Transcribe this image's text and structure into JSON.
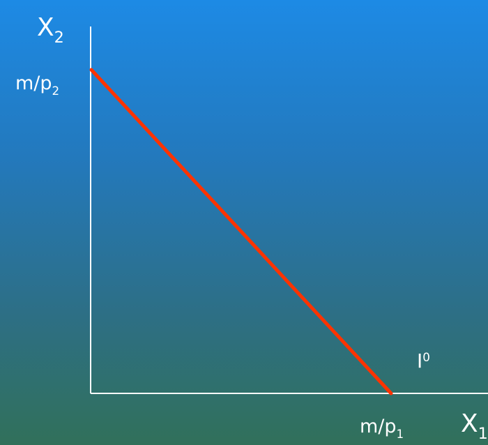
{
  "diagram": {
    "background_colors": {
      "top": "#1d8ae5",
      "bottom": "#31705a"
    },
    "axis_color": "#ffffff",
    "line_color": "#ff3300",
    "y_axis": {
      "symbol": "X",
      "subscript": "2"
    },
    "x_axis": {
      "symbol": "X",
      "subscript": "1"
    },
    "y_intercept": {
      "text": "m/p",
      "subscript": "2"
    },
    "x_intercept": {
      "text": "m/p",
      "subscript": "1"
    },
    "curve_label": {
      "text": "I",
      "superscript": "0"
    }
  }
}
